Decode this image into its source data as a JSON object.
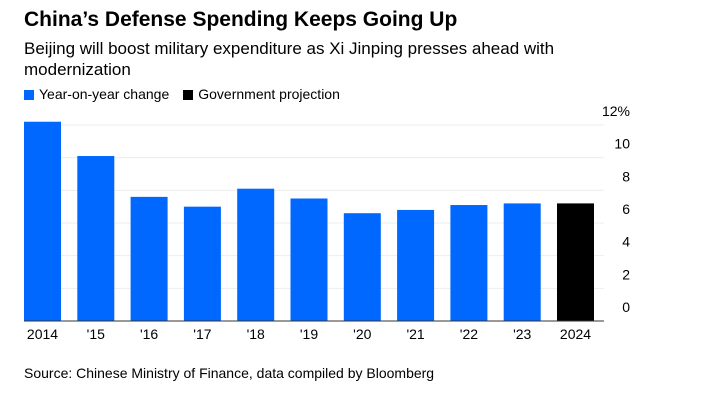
{
  "title": "China’s Defense Spending Keeps Going Up",
  "subtitle": "Beijing will boost military expenditure as Xi Jinping presses ahead with modernization",
  "source": "Source: Chinese Ministry of Finance, data compiled by Bloomberg",
  "chart_data": {
    "type": "bar",
    "title": "China’s Defense Spending Keeps Going Up",
    "categories": [
      "2014",
      "'15",
      "'16",
      "'17",
      "'18",
      "'19",
      "'20",
      "'21",
      "'22",
      "'23",
      "2024"
    ],
    "values": [
      12.2,
      10.1,
      7.6,
      7.0,
      8.1,
      7.5,
      6.6,
      6.8,
      7.1,
      7.2,
      7.2
    ],
    "bar_series": [
      "Year-on-year change",
      "Year-on-year change",
      "Year-on-year change",
      "Year-on-year change",
      "Year-on-year change",
      "Year-on-year change",
      "Year-on-year change",
      "Year-on-year change",
      "Year-on-year change",
      "Year-on-year change",
      "Government projection"
    ],
    "legend": [
      {
        "name": "Year-on-year change",
        "color": "#0068ff"
      },
      {
        "name": "Government projection",
        "color": "#000000"
      }
    ],
    "yticks": [
      "0",
      "2",
      "4",
      "6",
      "8",
      "10",
      "12%"
    ],
    "ytick_values": [
      0,
      2,
      4,
      6,
      8,
      10,
      12
    ],
    "ylim": [
      0,
      12
    ],
    "xlabel": "",
    "ylabel": "",
    "grid": true,
    "legend_position": "top-left"
  }
}
